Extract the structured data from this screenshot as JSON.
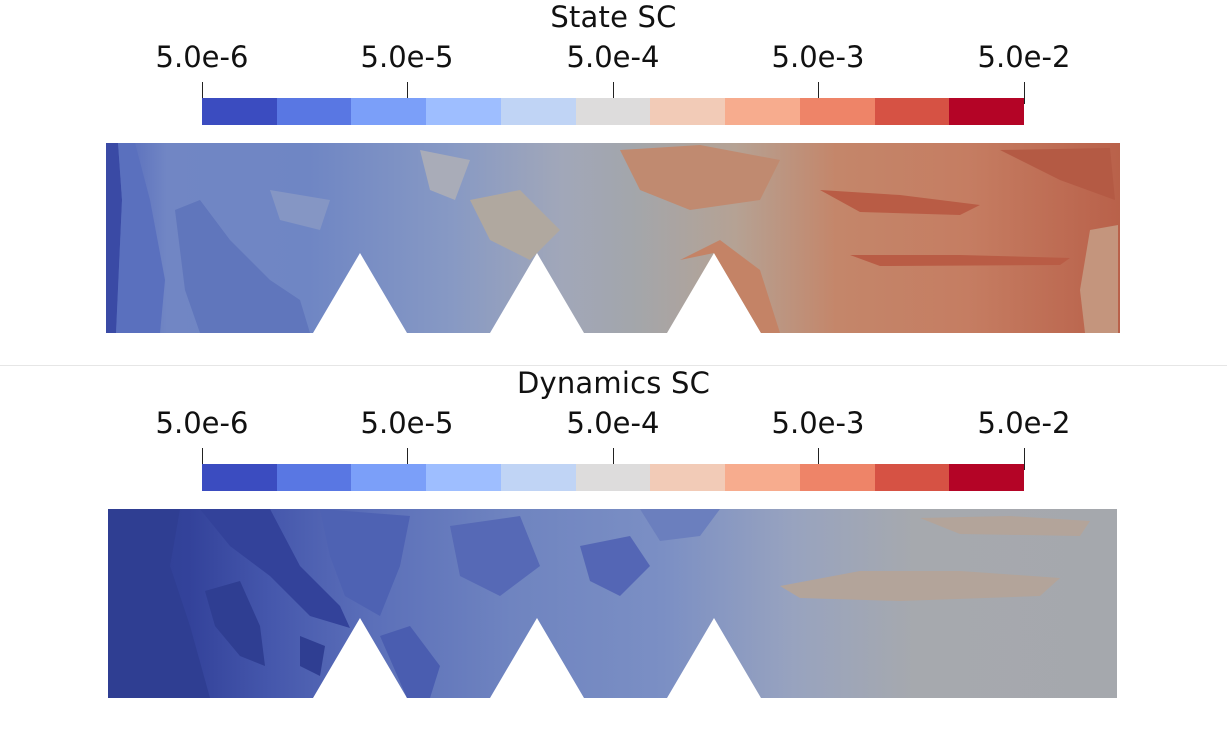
{
  "panels": [
    {
      "title": "State SC",
      "tick_labels": [
        "5.0e-6",
        "5.0e-5",
        "5.0e-4",
        "5.0e-3",
        "5.0e-2"
      ]
    },
    {
      "title": "Dynamics SC",
      "tick_labels": [
        "5.0e-6",
        "5.0e-5",
        "5.0e-4",
        "5.0e-3",
        "5.0e-2"
      ]
    }
  ],
  "colormap": {
    "name": "cool-to-warm",
    "scale": "log",
    "range": [
      5e-06,
      0.05
    ],
    "colors": [
      "#3b4cc0",
      "#5977e3",
      "#7b9ff9",
      "#9ebeff",
      "#c0d4f5",
      "#dddcdc",
      "#f2cbb7",
      "#f7ac8e",
      "#ee8468",
      "#d65244",
      "#b40426"
    ]
  }
}
